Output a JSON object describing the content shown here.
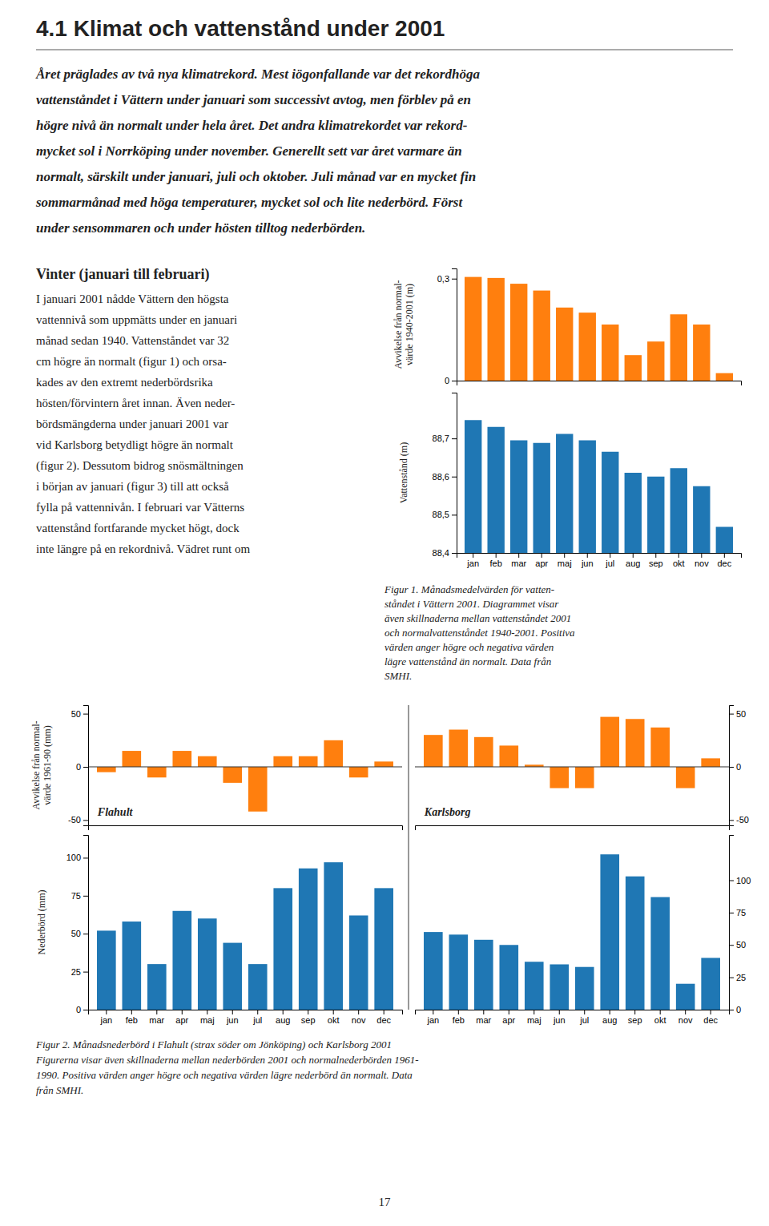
{
  "title": "4.1 Klimat och vattenstånd under 2001",
  "intro_lines": [
    "Året präglades av två nya klimatrekord. Mest iögonfallande var det rekordhöga",
    "vattenståndet i Vättern under januari som successivt avtog, men förblev på en",
    "högre nivå än normalt under hela året. Det andra klimatrekordet var rekord-",
    "mycket sol i Norrköping under november. Generellt sett var året varmare än",
    "normalt, särskilt under januari, juli och oktober. Juli månad var en mycket fin",
    "sommarmånad med höga temperaturer, mycket sol och lite nederbörd. Först",
    "under sensommaren och under hösten tilltog nederbörden."
  ],
  "winter_title": "Vinter (januari till februari)",
  "winter_lines": [
    "I januari 2001 nådde Vättern den högsta",
    "vattennivå som uppmätts under en januari",
    "månad sedan 1940. Vattenståndet var 32",
    "cm högre än normalt (figur 1) och orsa-",
    "kades av den extremt nederbördsrika",
    "hösten/förvintern året innan. Även neder-",
    "bördsmängderna under januari 2001 var",
    "vid Karlsborg betydligt högre än normalt",
    "(figur 2). Dessutom bidrog snösmältningen",
    "i början av januari (figur 3) till att också",
    "fylla på vattennivån. I februari var Vätterns",
    "vattenstånd fortfarande mycket högt, dock",
    "inte längre på en rekordnivå. Vädret runt om"
  ],
  "figure1_caption_lines": [
    "Figur 1. Månadsmedelvärden för vatten-",
    "ståndet i Vättern 2001. Diagrammet visar",
    "även skillnaderna mellan vattenståndet 2001",
    "och normalvattenståndet 1940-2001. Positiva",
    "värden anger högre och negativa värden",
    "lägre vattenstånd än normalt. Data från",
    "SMHI."
  ],
  "figure2_caption_lines": [
    "Figur 2. Månadsnederbörd i Flahult (strax söder om Jönköping) och Karlsborg 2001",
    "Figurerna visar även skillnaderna mellan nederbörden 2001 och normalnederbörden 1961-",
    "1990. Positiva värden anger högre och negativa värden lägre nederbörd än normalt. Data",
    "från SMHI."
  ],
  "page_number": "17",
  "chart_data": [
    {
      "type": "bar",
      "ylabel": "Avvikelse från normal-\nvärde 1940-2001 (m)",
      "categories": [
        null,
        null,
        null,
        null,
        null,
        null,
        null,
        null,
        null,
        null,
        null,
        null
      ],
      "values": [
        0.305,
        0.302,
        0.285,
        0.265,
        0.215,
        0.2,
        0.165,
        0.075,
        0.115,
        0.195,
        0.165,
        0.022
      ],
      "ylim": [
        0,
        0.33
      ],
      "yticks": [
        0,
        {
          "value": 0.3,
          "label": "0,3"
        }
      ]
    },
    {
      "type": "bar",
      "ylabel": "Vattenstånd (m)",
      "categories": [
        "jan",
        "feb",
        "mar",
        "apr",
        "maj",
        "jun",
        "jul",
        "aug",
        "sep",
        "okt",
        "nov",
        "dec"
      ],
      "values": [
        88.748,
        88.73,
        88.695,
        88.688,
        88.712,
        88.695,
        88.665,
        88.61,
        88.6,
        88.622,
        88.575,
        88.468
      ],
      "ylim": [
        88.4,
        88.82
      ],
      "yticks": [
        {
          "value": 88.4,
          "label": "88,4"
        },
        {
          "value": 88.5,
          "label": "88,5"
        },
        {
          "value": 88.6,
          "label": "88,6"
        },
        {
          "value": 88.7,
          "label": "88,7"
        }
      ]
    },
    {
      "type": "bar",
      "annotation": "Flahult",
      "ylabel": "Avvikelse från normal-\nvärde 1961-90 (mm)",
      "categories": [
        null,
        null,
        null,
        null,
        null,
        null,
        null,
        null,
        null,
        null,
        null,
        null
      ],
      "values": [
        -5,
        15,
        -10,
        15,
        10,
        -15,
        -42,
        10,
        10,
        25,
        -10,
        5
      ],
      "ylim": [
        -55,
        58
      ],
      "yticks": [
        -50,
        0,
        50
      ]
    },
    {
      "type": "bar",
      "ylabel": "Nederbörd (mm)",
      "categories": [
        "jan",
        "feb",
        "mar",
        "apr",
        "maj",
        "jun",
        "jul",
        "aug",
        "sep",
        "okt",
        "nov",
        "dec"
      ],
      "values": [
        52,
        58,
        30,
        65,
        60,
        44,
        30,
        80,
        93,
        97,
        62,
        80
      ],
      "ylim": [
        0,
        115
      ],
      "yticks": [
        0,
        25,
        50,
        75,
        100
      ]
    },
    {
      "type": "bar",
      "annotation": "Karlsborg",
      "categories": [
        null,
        null,
        null,
        null,
        null,
        null,
        null,
        null,
        null,
        null,
        null,
        null
      ],
      "values": [
        30,
        35,
        28,
        20,
        2,
        -20,
        -20,
        47,
        45,
        37,
        -20,
        8
      ],
      "ylim": [
        -55,
        58
      ],
      "yticks": [
        -50,
        0,
        50
      ]
    },
    {
      "type": "bar",
      "categories": [
        "jan",
        "feb",
        "mar",
        "apr",
        "maj",
        "jun",
        "jul",
        "aug",
        "sep",
        "okt",
        "nov",
        "dec"
      ],
      "values": [
        60,
        58,
        54,
        50,
        37,
        35,
        33,
        120,
        103,
        87,
        20,
        40
      ],
      "ylim": [
        0,
        135
      ],
      "yticks": [
        0,
        25,
        50,
        75,
        100
      ]
    }
  ]
}
